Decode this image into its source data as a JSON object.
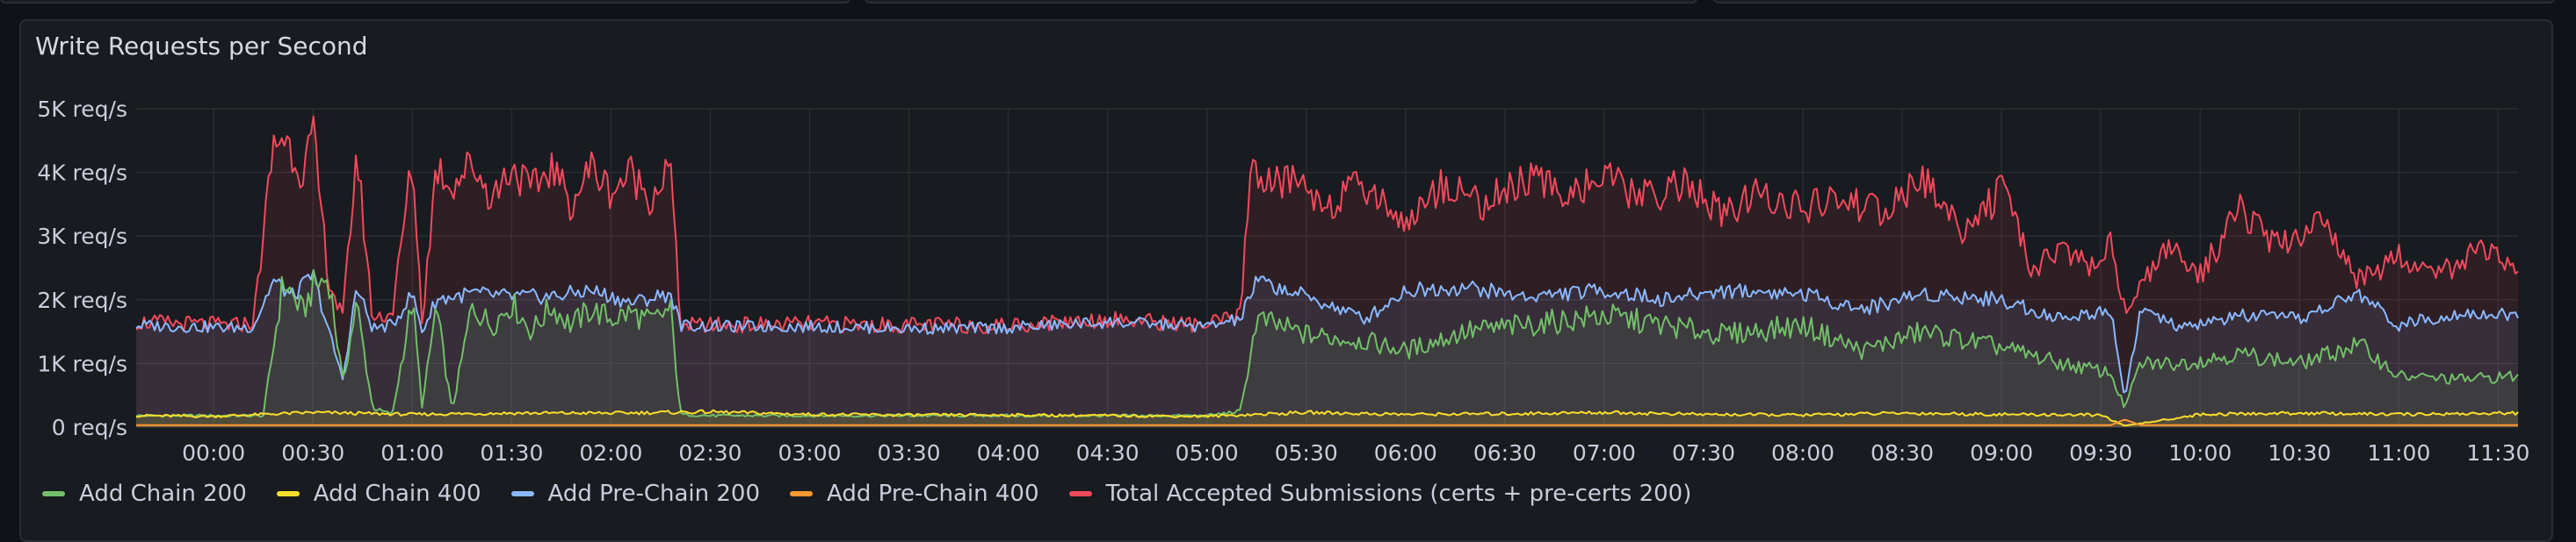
{
  "panel": {
    "title": "Write Requests per Second"
  },
  "chart_data": {
    "type": "line",
    "title": "Write Requests per Second",
    "xlabel": "",
    "ylabel": "",
    "x_ticks": [
      "00:00",
      "00:30",
      "01:00",
      "01:30",
      "02:00",
      "02:30",
      "03:00",
      "03:30",
      "04:00",
      "04:30",
      "05:00",
      "05:30",
      "06:00",
      "06:30",
      "07:00",
      "07:30",
      "08:00",
      "08:30",
      "09:00",
      "09:30",
      "10:00",
      "10:30",
      "11:00",
      "11:30"
    ],
    "y_ticks": [
      "0 req/s",
      "1K req/s",
      "2K req/s",
      "3K req/s",
      "4K req/s",
      "5K req/s"
    ],
    "ylim": [
      0,
      5000
    ],
    "xlim_hours": [
      -0.39,
      11.6
    ],
    "grid": true,
    "legend_position": "bottom-left",
    "series": [
      {
        "name": "Add Chain 200",
        "color": "#73bf69",
        "x": [
          -0.39,
          0.25,
          0.35,
          0.45,
          0.5,
          0.58,
          0.65,
          0.72,
          0.8,
          0.9,
          1.0,
          1.05,
          1.12,
          1.2,
          1.3,
          1.4,
          1.5,
          1.6,
          1.7,
          1.8,
          1.9,
          2.0,
          2.1,
          2.2,
          2.3,
          2.35,
          2.5,
          3.0,
          4.0,
          5.0,
          5.17,
          5.25,
          5.5,
          5.8,
          6.0,
          6.3,
          6.6,
          7.0,
          7.3,
          7.6,
          8.0,
          8.3,
          8.6,
          9.0,
          9.3,
          9.55,
          9.62,
          9.7,
          9.9,
          10.2,
          10.5,
          10.8,
          11.0,
          11.3,
          11.6
        ],
        "y": [
          180,
          180,
          2300,
          1800,
          2200,
          2350,
          700,
          1950,
          300,
          200,
          2000,
          300,
          1900,
          250,
          1900,
          1600,
          1950,
          1500,
          1900,
          1600,
          1850,
          1700,
          1800,
          1650,
          1850,
          200,
          180,
          180,
          180,
          180,
          250,
          1700,
          1450,
          1350,
          1200,
          1500,
          1600,
          1750,
          1600,
          1450,
          1600,
          1200,
          1500,
          1250,
          1000,
          850,
          300,
          1000,
          1000,
          1150,
          1000,
          1300,
          800,
          750,
          800
        ]
      },
      {
        "name": "Add Chain 400",
        "color": "#fade2a",
        "x": [
          -0.39,
          0.0,
          0.5,
          1.0,
          1.5,
          2.0,
          2.5,
          3.0,
          3.5,
          4.0,
          4.5,
          5.0,
          5.5,
          6.0,
          6.5,
          7.0,
          7.5,
          8.0,
          8.5,
          9.0,
          9.5,
          9.62,
          10.0,
          10.5,
          11.0,
          11.6
        ],
        "y": [
          180,
          170,
          230,
          200,
          220,
          220,
          240,
          200,
          190,
          190,
          180,
          170,
          230,
          200,
          210,
          230,
          200,
          190,
          220,
          200,
          190,
          20,
          200,
          220,
          200,
          220
        ]
      },
      {
        "name": "Add Pre-Chain 200",
        "color": "#8ab8ff",
        "x": [
          -0.39,
          0.1,
          0.2,
          0.3,
          0.4,
          0.5,
          0.58,
          0.65,
          0.72,
          0.8,
          0.9,
          1.0,
          1.05,
          1.12,
          1.3,
          1.5,
          1.7,
          1.9,
          2.1,
          2.3,
          2.35,
          2.5,
          3.0,
          3.5,
          4.0,
          4.5,
          5.0,
          5.17,
          5.25,
          5.5,
          5.8,
          6.0,
          6.3,
          6.6,
          7.0,
          7.3,
          7.6,
          8.0,
          8.3,
          8.6,
          9.0,
          9.3,
          9.55,
          9.62,
          9.7,
          9.9,
          10.2,
          10.5,
          10.8,
          11.0,
          11.3,
          11.6
        ],
        "y": [
          1600,
          1560,
          1580,
          2300,
          2050,
          2400,
          1500,
          750,
          2200,
          1550,
          1600,
          2100,
          1500,
          2000,
          2100,
          2050,
          2050,
          2150,
          1950,
          2100,
          1600,
          1580,
          1580,
          1550,
          1560,
          1650,
          1580,
          1700,
          2300,
          2050,
          1700,
          2150,
          2200,
          2050,
          2150,
          2000,
          2150,
          2100,
          1850,
          2100,
          2000,
          1700,
          1850,
          450,
          1850,
          1550,
          1750,
          1700,
          2100,
          1600,
          1800,
          1750
        ]
      },
      {
        "name": "Add Pre-Chain 400",
        "color": "#ff9830",
        "x": [
          -0.39,
          2.0,
          5.0,
          9.55,
          9.62,
          9.7,
          11.6
        ],
        "y": [
          30,
          30,
          30,
          30,
          120,
          30,
          30
        ]
      },
      {
        "name": "Total Accepted Submissions (certs + pre-certs 200)",
        "color": "#f2495c",
        "x": [
          -0.39,
          0.1,
          0.2,
          0.3,
          0.35,
          0.45,
          0.5,
          0.58,
          0.65,
          0.72,
          0.8,
          0.9,
          1.0,
          1.05,
          1.12,
          1.2,
          1.3,
          1.4,
          1.5,
          1.6,
          1.7,
          1.8,
          1.9,
          2.0,
          2.1,
          2.2,
          2.3,
          2.35,
          2.5,
          3.0,
          3.5,
          4.0,
          4.5,
          5.0,
          5.17,
          5.22,
          5.3,
          5.45,
          5.6,
          5.8,
          6.0,
          6.2,
          6.4,
          6.6,
          6.8,
          7.0,
          7.2,
          7.4,
          7.6,
          7.8,
          8.0,
          8.2,
          8.4,
          8.6,
          8.8,
          9.0,
          9.15,
          9.3,
          9.45,
          9.55,
          9.62,
          9.7,
          9.85,
          10.0,
          10.2,
          10.4,
          10.6,
          10.8,
          11.0,
          11.2,
          11.4,
          11.6
        ],
        "y": [
          1650,
          1600,
          1650,
          4400,
          4600,
          4000,
          4600,
          2300,
          1700,
          4350,
          1700,
          1800,
          4200,
          1650,
          4100,
          3800,
          4150,
          3600,
          4100,
          3700,
          4100,
          3500,
          4100,
          3700,
          4000,
          3600,
          4100,
          1600,
          1600,
          1620,
          1600,
          1600,
          1700,
          1600,
          1750,
          4200,
          3800,
          3900,
          3500,
          3800,
          3200,
          3850,
          3500,
          3900,
          3700,
          3900,
          3600,
          3850,
          3300,
          3700,
          3400,
          3600,
          3350,
          3900,
          3100,
          3700,
          2500,
          2800,
          2500,
          2900,
          1800,
          2300,
          2800,
          2400,
          3400,
          2800,
          3300,
          2300,
          2700,
          2400,
          2800,
          2400
        ]
      }
    ]
  }
}
